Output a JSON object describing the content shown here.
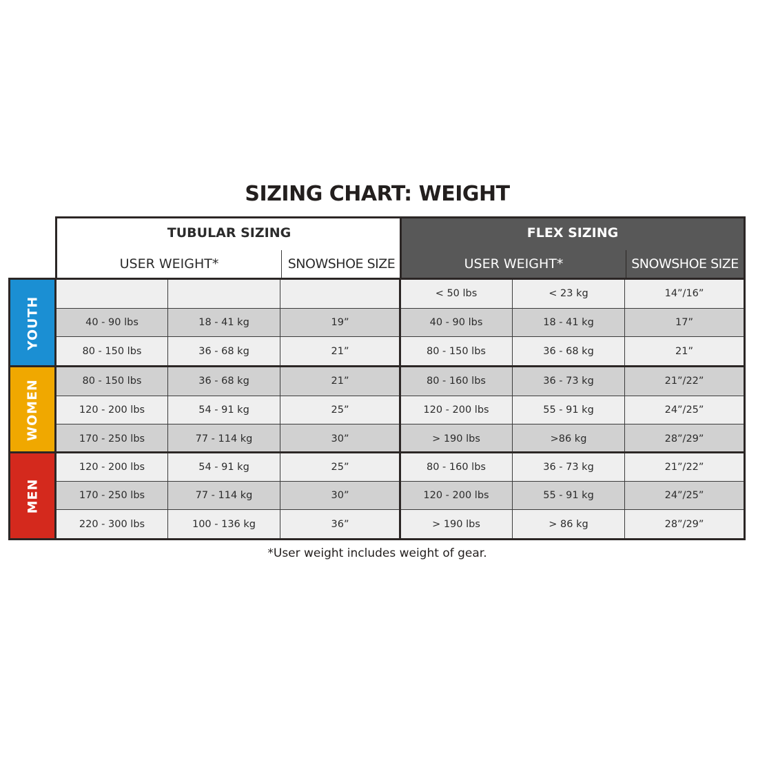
{
  "title": "SIZING CHART: WEIGHT",
  "footnote": "*User weight includes weight of gear.",
  "tubular": {
    "title": "TUBULAR SIZING",
    "weight_header": "USER WEIGHT*",
    "size_header": "SNOWSHOE SIZE"
  },
  "flex": {
    "title": "FLEX SIZING",
    "weight_header": "USER WEIGHT*",
    "size_header": "SNOWSHOE SIZE"
  },
  "colors": {
    "youth": "#1b8fd3",
    "women": "#f0a800",
    "men": "#d4291d",
    "flex_header": "#585858"
  },
  "groups": [
    {
      "label": "YOUTH",
      "color_key": "youth",
      "rows": [
        [
          "",
          "",
          "",
          "< 50 lbs",
          "< 23 kg",
          "14”/16”"
        ],
        [
          "40 - 90 lbs",
          "18 - 41 kg",
          "19”",
          "40 - 90 lbs",
          "18 - 41 kg",
          "17”"
        ],
        [
          "80 - 150 lbs",
          "36 - 68 kg",
          "21”",
          "80 - 150 lbs",
          "36 - 68 kg",
          "21”"
        ]
      ]
    },
    {
      "label": "WOMEN",
      "color_key": "women",
      "rows": [
        [
          "80 - 150 lbs",
          "36 - 68 kg",
          "21”",
          "80 - 160 lbs",
          "36 - 73 kg",
          "21”/22”"
        ],
        [
          "120 - 200 lbs",
          "54 - 91 kg",
          "25”",
          "120 - 200 lbs",
          "55 - 91 kg",
          "24”/25”"
        ],
        [
          "170 - 250 lbs",
          "77 - 114 kg",
          "30”",
          "> 190 lbs",
          ">86 kg",
          "28”/29”"
        ]
      ]
    },
    {
      "label": "MEN",
      "color_key": "men",
      "rows": [
        [
          "120 - 200 lbs",
          "54 - 91 kg",
          "25”",
          "80 - 160 lbs",
          "36 - 73 kg",
          "21”/22”"
        ],
        [
          "170 - 250 lbs",
          "77 - 114 kg",
          "30”",
          "120 - 200 lbs",
          "55 - 91 kg",
          "24”/25”"
        ],
        [
          "220 - 300 lbs",
          "100 - 136 kg",
          "36”",
          "> 190 lbs",
          "> 86 kg",
          "28”/29”"
        ]
      ]
    }
  ]
}
